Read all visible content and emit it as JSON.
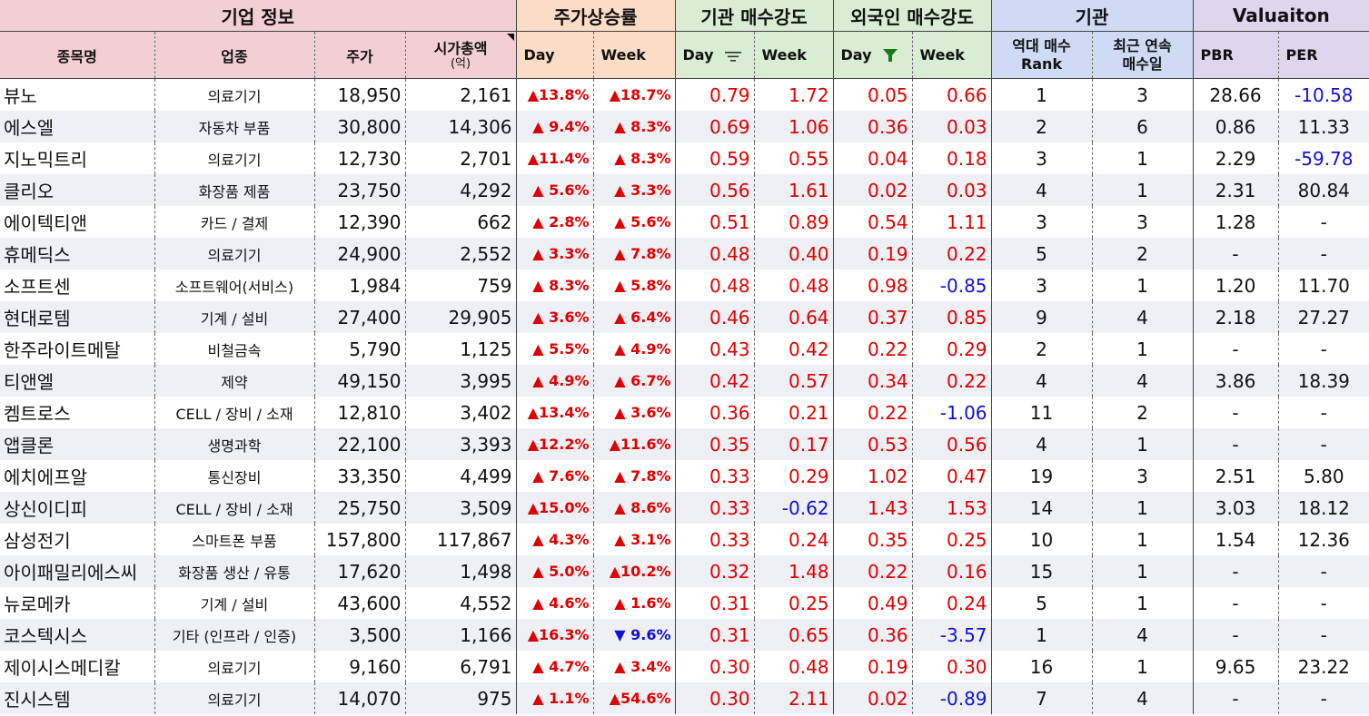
{
  "groups": {
    "company": "기업 정보",
    "rise": "주가상승률",
    "inst": "기관 매수강도",
    "foreign": "외국인 매수강도",
    "inst2": "기관",
    "valuation": "Valuaiton"
  },
  "headers": {
    "name": "종목명",
    "industry": "업종",
    "price": "주가",
    "mcap": "시가총액",
    "mcap_unit": "(억)",
    "rise_day": "Day",
    "rise_week": "Week",
    "inst_day": "Day",
    "inst_week": "Week",
    "for_day": "Day",
    "for_week": "Week",
    "rank_l1": "역대 매수",
    "rank_l2": "Rank",
    "streak_l1": "최근 연속",
    "streak_l2": "매수일",
    "pbr": "PBR",
    "per": "PER"
  },
  "colors": {
    "up": "#e00000",
    "down": "#1010d8",
    "filter_active": "#1a7a1a"
  },
  "rows": [
    {
      "name": "뷰노",
      "industry": "의료기기",
      "price": "18,950",
      "mcap": "2,161",
      "rise_day": "▲13.8%",
      "rise_week": "▲18.7%",
      "inst_day": "0.79",
      "inst_week": "1.72",
      "for_day": "0.05",
      "for_week": "0.66",
      "rank": "1",
      "streak": "3",
      "pbr": "28.66",
      "per": "-10.58"
    },
    {
      "name": "에스엘",
      "industry": "자동차 부품",
      "price": "30,800",
      "mcap": "14,306",
      "rise_day": "▲ 9.4%",
      "rise_week": "▲ 8.3%",
      "inst_day": "0.69",
      "inst_week": "1.06",
      "for_day": "0.36",
      "for_week": "0.03",
      "rank": "2",
      "streak": "6",
      "pbr": "0.86",
      "per": "11.33"
    },
    {
      "name": "지노믹트리",
      "industry": "의료기기",
      "price": "12,730",
      "mcap": "2,701",
      "rise_day": "▲11.4%",
      "rise_week": "▲ 8.3%",
      "inst_day": "0.59",
      "inst_week": "0.55",
      "for_day": "0.04",
      "for_week": "0.18",
      "rank": "3",
      "streak": "1",
      "pbr": "2.29",
      "per": "-59.78"
    },
    {
      "name": "클리오",
      "industry": "화장품 제품",
      "price": "23,750",
      "mcap": "4,292",
      "rise_day": "▲ 5.6%",
      "rise_week": "▲ 3.3%",
      "inst_day": "0.56",
      "inst_week": "1.61",
      "for_day": "0.02",
      "for_week": "0.03",
      "rank": "4",
      "streak": "1",
      "pbr": "2.31",
      "per": "80.84"
    },
    {
      "name": "에이텍티앤",
      "industry": "카드 / 결제",
      "price": "12,390",
      "mcap": "662",
      "rise_day": "▲ 2.8%",
      "rise_week": "▲ 5.6%",
      "inst_day": "0.51",
      "inst_week": "0.89",
      "for_day": "0.54",
      "for_week": "1.11",
      "rank": "3",
      "streak": "3",
      "pbr": "1.28",
      "per": "-"
    },
    {
      "name": "휴메딕스",
      "industry": "의료기기",
      "price": "24,900",
      "mcap": "2,552",
      "rise_day": "▲ 3.3%",
      "rise_week": "▲ 7.8%",
      "inst_day": "0.48",
      "inst_week": "0.40",
      "for_day": "0.19",
      "for_week": "0.22",
      "rank": "5",
      "streak": "2",
      "pbr": "-",
      "per": "-"
    },
    {
      "name": "소프트센",
      "industry": "소프트웨어(서비스)",
      "price": "1,984",
      "mcap": "759",
      "rise_day": "▲ 8.3%",
      "rise_week": "▲ 5.8%",
      "inst_day": "0.48",
      "inst_week": "0.48",
      "for_day": "0.98",
      "for_week": "-0.85",
      "rank": "3",
      "streak": "1",
      "pbr": "1.20",
      "per": "11.70"
    },
    {
      "name": "현대로템",
      "industry": "기계 / 설비",
      "price": "27,400",
      "mcap": "29,905",
      "rise_day": "▲ 3.6%",
      "rise_week": "▲ 6.4%",
      "inst_day": "0.46",
      "inst_week": "0.64",
      "for_day": "0.37",
      "for_week": "0.85",
      "rank": "9",
      "streak": "4",
      "pbr": "2.18",
      "per": "27.27"
    },
    {
      "name": "한주라이트메탈",
      "industry": "비철금속",
      "price": "5,790",
      "mcap": "1,125",
      "rise_day": "▲ 5.5%",
      "rise_week": "▲ 4.9%",
      "inst_day": "0.43",
      "inst_week": "0.42",
      "for_day": "0.22",
      "for_week": "0.29",
      "rank": "2",
      "streak": "1",
      "pbr": "-",
      "per": "-"
    },
    {
      "name": "티앤엘",
      "industry": "제약",
      "price": "49,150",
      "mcap": "3,995",
      "rise_day": "▲ 4.9%",
      "rise_week": "▲ 6.7%",
      "inst_day": "0.42",
      "inst_week": "0.57",
      "for_day": "0.34",
      "for_week": "0.22",
      "rank": "4",
      "streak": "4",
      "pbr": "3.86",
      "per": "18.39"
    },
    {
      "name": "켐트로스",
      "industry": "CELL / 장비 / 소재",
      "price": "12,810",
      "mcap": "3,402",
      "rise_day": "▲13.4%",
      "rise_week": "▲ 3.6%",
      "inst_day": "0.36",
      "inst_week": "0.21",
      "for_day": "0.22",
      "for_week": "-1.06",
      "rank": "11",
      "streak": "2",
      "pbr": "-",
      "per": "-"
    },
    {
      "name": "앱클론",
      "industry": "생명과학",
      "price": "22,100",
      "mcap": "3,393",
      "rise_day": "▲12.2%",
      "rise_week": "▲11.6%",
      "inst_day": "0.35",
      "inst_week": "0.17",
      "for_day": "0.53",
      "for_week": "0.56",
      "rank": "4",
      "streak": "1",
      "pbr": "-",
      "per": "-"
    },
    {
      "name": "에치에프알",
      "industry": "통신장비",
      "price": "33,350",
      "mcap": "4,499",
      "rise_day": "▲ 7.6%",
      "rise_week": "▲ 7.8%",
      "inst_day": "0.33",
      "inst_week": "0.29",
      "for_day": "1.02",
      "for_week": "0.47",
      "rank": "19",
      "streak": "3",
      "pbr": "2.51",
      "per": "5.80"
    },
    {
      "name": "상신이디피",
      "industry": "CELL / 장비 / 소재",
      "price": "25,750",
      "mcap": "3,509",
      "rise_day": "▲15.0%",
      "rise_week": "▲ 8.6%",
      "inst_day": "0.33",
      "inst_week": "-0.62",
      "for_day": "1.43",
      "for_week": "1.53",
      "rank": "14",
      "streak": "1",
      "pbr": "3.03",
      "per": "18.12"
    },
    {
      "name": "삼성전기",
      "industry": "스마트폰 부품",
      "price": "157,800",
      "mcap": "117,867",
      "rise_day": "▲ 4.3%",
      "rise_week": "▲ 3.1%",
      "inst_day": "0.33",
      "inst_week": "0.24",
      "for_day": "0.35",
      "for_week": "0.25",
      "rank": "10",
      "streak": "1",
      "pbr": "1.54",
      "per": "12.36"
    },
    {
      "name": "아이패밀리에스씨",
      "industry": "화장품 생산 / 유통",
      "price": "17,620",
      "mcap": "1,498",
      "rise_day": "▲ 5.0%",
      "rise_week": "▲10.2%",
      "inst_day": "0.32",
      "inst_week": "1.48",
      "for_day": "0.22",
      "for_week": "0.16",
      "rank": "15",
      "streak": "1",
      "pbr": "-",
      "per": "-"
    },
    {
      "name": "뉴로메카",
      "industry": "기계 / 설비",
      "price": "43,600",
      "mcap": "4,552",
      "rise_day": "▲ 4.6%",
      "rise_week": "▲ 1.6%",
      "inst_day": "0.31",
      "inst_week": "0.25",
      "for_day": "0.49",
      "for_week": "0.24",
      "rank": "5",
      "streak": "1",
      "pbr": "-",
      "per": "-"
    },
    {
      "name": "코스텍시스",
      "industry": "기타 (인프라 / 인증)",
      "price": "3,500",
      "mcap": "1,166",
      "rise_day": "▲16.3%",
      "rise_week": "▼ 9.6%",
      "inst_day": "0.31",
      "inst_week": "0.65",
      "for_day": "0.36",
      "for_week": "-3.57",
      "rank": "1",
      "streak": "4",
      "pbr": "-",
      "per": "-"
    },
    {
      "name": "제이시스메디칼",
      "industry": "의료기기",
      "price": "9,160",
      "mcap": "6,791",
      "rise_day": "▲ 4.7%",
      "rise_week": "▲ 3.4%",
      "inst_day": "0.30",
      "inst_week": "0.48",
      "for_day": "0.19",
      "for_week": "0.30",
      "rank": "16",
      "streak": "1",
      "pbr": "9.65",
      "per": "23.22"
    },
    {
      "name": "진시스템",
      "industry": "의료기기",
      "price": "14,070",
      "mcap": "975",
      "rise_day": "▲ 1.1%",
      "rise_week": "▲54.6%",
      "inst_day": "0.30",
      "inst_week": "2.11",
      "for_day": "0.02",
      "for_week": "-0.89",
      "rank": "7",
      "streak": "4",
      "pbr": "-",
      "per": "-"
    }
  ]
}
